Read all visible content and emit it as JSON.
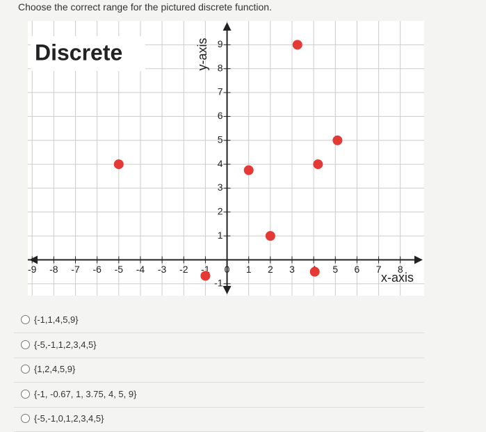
{
  "question": "Choose the correct range for the pictured discrete function.",
  "chart_data": {
    "type": "scatter",
    "title": "Discrete",
    "x_label": "x-axis",
    "y_label": "y-axis",
    "series": [
      {
        "color": "#e53935",
        "x": [
          -5,
          -1,
          1,
          2,
          3.25,
          4.2,
          4.05,
          5.1
        ],
        "values": [
          4,
          -0.67,
          3.75,
          1,
          9,
          4,
          -0.5,
          5
        ]
      }
    ],
    "xlim": [
      -9.2,
      9.1
    ],
    "ylim": [
      -1.5,
      10
    ],
    "xticks": [
      -9,
      -8,
      -7,
      -6,
      -5,
      -4,
      -3,
      -2,
      -1,
      0,
      1,
      2,
      3,
      4,
      5,
      6,
      7,
      8
    ],
    "yticks": [
      -1,
      1,
      2,
      3,
      4,
      5,
      6,
      7,
      8,
      9
    ],
    "grid": true
  },
  "options": [
    "{-1,1,4,5,9}",
    "{-5,-1,1,2,3,4,5}",
    "{1,2,4,5,9}",
    "{-1, -0.67, 1, 3.75, 4, 5, 9}",
    "{-5,-1,0,1,2,3,4,5}"
  ]
}
